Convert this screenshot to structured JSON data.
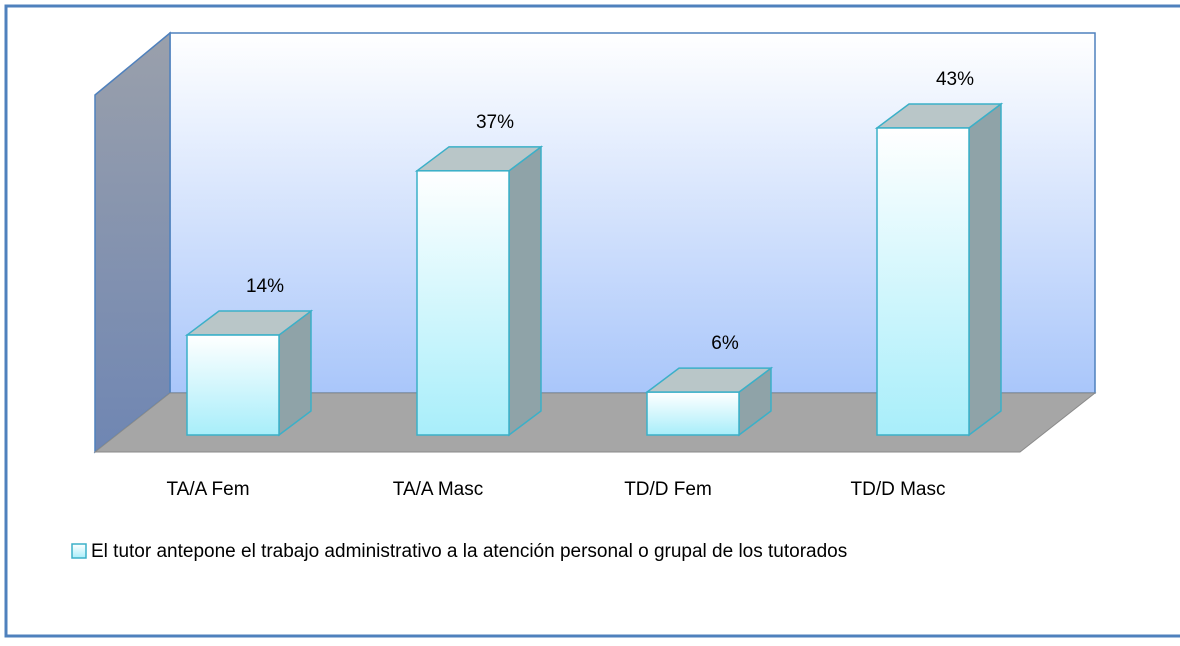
{
  "chart_data": {
    "type": "bar3d",
    "categories": [
      "TA/A Fem",
      "TA/A Masc",
      "TD/D Fem",
      "TD/D Masc"
    ],
    "series": [
      {
        "name": "El tutor antepone el trabajo administrativo a la atención personal o grupal de los tutorados",
        "color": "#a8eefa",
        "values": [
          14,
          37,
          6,
          43
        ],
        "value_labels": [
          "14%",
          "37%",
          "6%",
          "43%"
        ]
      }
    ],
    "ylim": [
      0,
      50
    ],
    "legend": "bottom"
  }
}
